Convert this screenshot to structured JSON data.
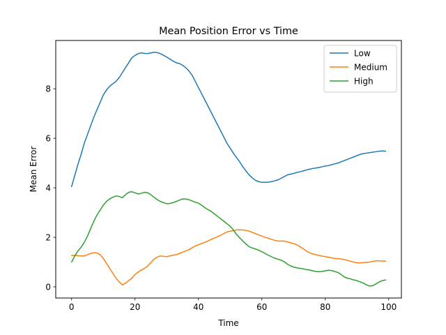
{
  "chart_data": {
    "type": "line",
    "title": "Mean Position Error vs Time",
    "xlabel": "Time",
    "ylabel": "Mean Error",
    "xlim": [
      -5,
      104
    ],
    "ylim": [
      -0.45,
      9.95
    ],
    "xticks": [
      0,
      20,
      40,
      60,
      80,
      100
    ],
    "yticks": [
      0,
      2,
      4,
      6,
      8
    ],
    "grid": false,
    "legend_position": "top-right",
    "x": [
      0,
      1,
      2,
      3,
      4,
      5,
      6,
      7,
      8,
      9,
      10,
      11,
      12,
      13,
      14,
      15,
      16,
      17,
      18,
      19,
      20,
      21,
      22,
      23,
      24,
      25,
      26,
      27,
      28,
      29,
      30,
      31,
      32,
      33,
      34,
      35,
      36,
      37,
      38,
      39,
      40,
      41,
      42,
      43,
      44,
      45,
      46,
      47,
      48,
      49,
      50,
      51,
      52,
      53,
      54,
      55,
      56,
      57,
      58,
      59,
      60,
      61,
      62,
      63,
      64,
      65,
      66,
      67,
      68,
      69,
      70,
      71,
      72,
      73,
      74,
      75,
      76,
      77,
      78,
      79,
      80,
      81,
      82,
      83,
      84,
      85,
      86,
      87,
      88,
      89,
      90,
      91,
      92,
      93,
      94,
      95,
      96,
      97,
      98,
      99
    ],
    "series": [
      {
        "name": "Low",
        "color": "#1f77b4",
        "values": [
          4.05,
          4.5,
          4.95,
          5.35,
          5.8,
          6.15,
          6.5,
          6.85,
          7.15,
          7.45,
          7.75,
          7.95,
          8.1,
          8.2,
          8.3,
          8.45,
          8.65,
          8.85,
          9.05,
          9.25,
          9.35,
          9.42,
          9.45,
          9.43,
          9.42,
          9.45,
          9.47,
          9.46,
          9.42,
          9.35,
          9.28,
          9.2,
          9.12,
          9.05,
          9.02,
          8.95,
          8.85,
          8.72,
          8.55,
          8.3,
          8.05,
          7.8,
          7.55,
          7.3,
          7.05,
          6.8,
          6.55,
          6.3,
          6.05,
          5.8,
          5.6,
          5.4,
          5.22,
          5.05,
          4.85,
          4.68,
          4.52,
          4.4,
          4.3,
          4.25,
          4.22,
          4.22,
          4.23,
          4.25,
          4.28,
          4.32,
          4.38,
          4.45,
          4.52,
          4.55,
          4.58,
          4.62,
          4.65,
          4.68,
          4.72,
          4.75,
          4.78,
          4.8,
          4.82,
          4.85,
          4.88,
          4.9,
          4.93,
          4.97,
          5.0,
          5.05,
          5.1,
          5.15,
          5.2,
          5.25,
          5.3,
          5.35,
          5.38,
          5.4,
          5.42,
          5.44,
          5.46,
          5.48,
          5.49,
          5.48
        ]
      },
      {
        "name": "Medium",
        "color": "#ff7f0e",
        "values": [
          1.27,
          1.27,
          1.26,
          1.25,
          1.25,
          1.3,
          1.35,
          1.38,
          1.37,
          1.3,
          1.15,
          0.95,
          0.75,
          0.55,
          0.35,
          0.2,
          0.08,
          0.15,
          0.25,
          0.35,
          0.5,
          0.6,
          0.68,
          0.75,
          0.85,
          0.98,
          1.12,
          1.2,
          1.25,
          1.23,
          1.22,
          1.25,
          1.28,
          1.3,
          1.35,
          1.4,
          1.45,
          1.5,
          1.58,
          1.65,
          1.7,
          1.75,
          1.8,
          1.85,
          1.92,
          1.97,
          2.02,
          2.08,
          2.15,
          2.22,
          2.25,
          2.27,
          2.3,
          2.3,
          2.3,
          2.28,
          2.25,
          2.2,
          2.15,
          2.1,
          2.05,
          2.0,
          1.97,
          1.92,
          1.88,
          1.85,
          1.85,
          1.85,
          1.82,
          1.78,
          1.75,
          1.7,
          1.62,
          1.55,
          1.45,
          1.38,
          1.33,
          1.3,
          1.27,
          1.24,
          1.22,
          1.2,
          1.17,
          1.15,
          1.14,
          1.13,
          1.1,
          1.07,
          1.03,
          1.0,
          0.97,
          0.97,
          0.98,
          0.99,
          1.0,
          1.03,
          1.05,
          1.05,
          1.04,
          1.04
        ]
      },
      {
        "name": "High",
        "color": "#2ca02c",
        "values": [
          1.0,
          1.25,
          1.45,
          1.6,
          1.8,
          2.05,
          2.35,
          2.65,
          2.9,
          3.1,
          3.3,
          3.45,
          3.55,
          3.62,
          3.67,
          3.65,
          3.6,
          3.72,
          3.82,
          3.84,
          3.8,
          3.75,
          3.78,
          3.82,
          3.8,
          3.72,
          3.62,
          3.52,
          3.45,
          3.4,
          3.36,
          3.37,
          3.4,
          3.45,
          3.5,
          3.55,
          3.55,
          3.52,
          3.47,
          3.42,
          3.38,
          3.3,
          3.2,
          3.12,
          3.05,
          2.95,
          2.85,
          2.75,
          2.65,
          2.55,
          2.45,
          2.3,
          2.12,
          1.98,
          1.85,
          1.73,
          1.62,
          1.57,
          1.53,
          1.48,
          1.42,
          1.35,
          1.28,
          1.22,
          1.16,
          1.12,
          1.08,
          1.02,
          0.92,
          0.85,
          0.8,
          0.77,
          0.75,
          0.73,
          0.7,
          0.68,
          0.65,
          0.62,
          0.61,
          0.62,
          0.65,
          0.67,
          0.66,
          0.62,
          0.58,
          0.5,
          0.4,
          0.35,
          0.32,
          0.28,
          0.25,
          0.2,
          0.15,
          0.08,
          0.03,
          0.05,
          0.12,
          0.2,
          0.25,
          0.28
        ]
      }
    ]
  }
}
